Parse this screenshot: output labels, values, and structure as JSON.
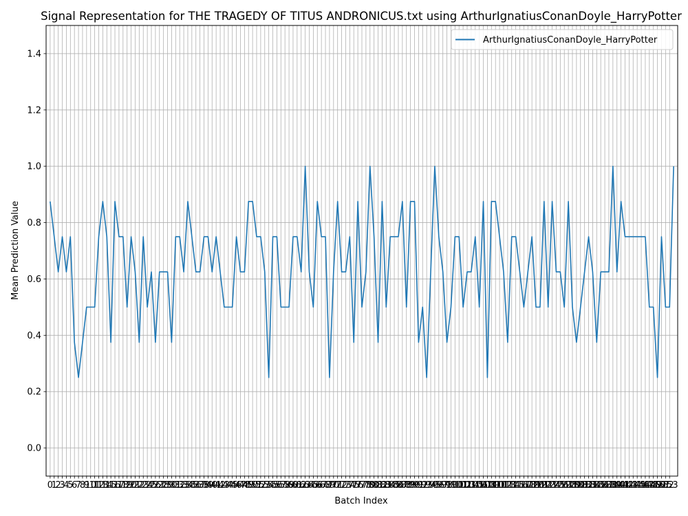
{
  "chart_data": {
    "type": "line",
    "title": "Signal Representation for THE TRAGEDY OF TITUS ANDRONICUS.txt using ArthurIgnatiusConanDoyle_HarryPotter",
    "xlabel": "Batch Index",
    "ylabel": "Mean Prediction Value",
    "xlim": [
      -1,
      155
    ],
    "ylim": [
      -0.1,
      1.5
    ],
    "yticks": [
      0.0,
      0.2,
      0.4,
      0.6,
      0.8,
      1.0,
      1.2,
      1.4
    ],
    "xticks_count": 154,
    "grid": true,
    "legend_position": "top-right",
    "series": [
      {
        "name": "ArthurIgnatiusConanDoyle_HarryPotter",
        "color": "#1f77b4",
        "values": [
          0.875,
          0.75,
          0.625,
          0.75,
          0.625,
          0.75,
          0.375,
          0.25,
          0.375,
          0.5,
          0.5,
          0.5,
          0.75,
          0.875,
          0.75,
          0.375,
          0.875,
          0.75,
          0.75,
          0.5,
          0.75,
          0.625,
          0.375,
          0.75,
          0.5,
          0.625,
          0.375,
          0.625,
          0.625,
          0.625,
          0.375,
          0.75,
          0.75,
          0.625,
          0.875,
          0.75,
          0.625,
          0.625,
          0.75,
          0.75,
          0.625,
          0.75,
          0.625,
          0.5,
          0.5,
          0.5,
          0.75,
          0.625,
          0.625,
          0.875,
          0.875,
          0.75,
          0.75,
          0.625,
          0.25,
          0.75,
          0.75,
          0.5,
          0.5,
          0.5,
          0.75,
          0.75,
          0.625,
          1.0,
          0.625,
          0.5,
          0.875,
          0.75,
          0.75,
          0.25,
          0.625,
          0.875,
          0.625,
          0.625,
          0.75,
          0.375,
          0.875,
          0.5,
          0.625,
          1.0,
          0.75,
          0.375,
          0.875,
          0.5,
          0.75,
          0.75,
          0.75,
          0.875,
          0.5,
          0.875,
          0.875,
          0.375,
          0.5,
          0.25,
          0.625,
          1.0,
          0.75,
          0.625,
          0.375,
          0.5,
          0.75,
          0.75,
          0.5,
          0.625,
          0.625,
          0.75,
          0.5,
          0.875,
          0.25,
          0.875,
          0.875,
          0.75,
          0.625,
          0.375,
          0.75,
          0.75,
          0.625,
          0.5,
          0.625,
          0.75,
          0.5,
          0.5,
          0.875,
          0.5,
          0.875,
          0.625,
          0.625,
          0.5,
          0.875,
          0.5,
          0.375,
          0.5,
          0.625,
          0.75,
          0.625,
          0.375,
          0.625,
          0.625,
          0.625,
          1.0,
          0.625,
          0.875,
          0.75,
          0.75,
          0.75,
          0.75,
          0.75,
          0.75,
          0.5,
          0.5,
          0.25,
          0.75,
          0.5,
          0.5,
          1.0
        ]
      }
    ]
  }
}
